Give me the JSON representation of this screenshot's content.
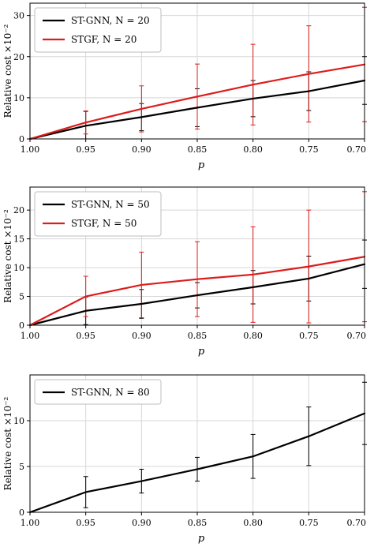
{
  "chart_data": [
    {
      "type": "line",
      "x": [
        1.0,
        0.95,
        0.9,
        0.85,
        0.8,
        0.75,
        0.7
      ],
      "tick_labels": [
        "1.00",
        "0.95",
        "0.90",
        "0.85",
        "0.80",
        "0.75",
        "0.70"
      ],
      "xlabel": "p",
      "ylabel": "Relative cost ×10⁻²",
      "ylim": [
        0,
        33
      ],
      "yticks": [
        0,
        10,
        20,
        30
      ],
      "grid": true,
      "legend_position": "top-left",
      "series": [
        {
          "name": "ST-GNN, N = 20",
          "color": "#000000",
          "values": [
            0,
            3.2,
            5.3,
            7.6,
            9.8,
            11.6,
            14.2
          ],
          "errors": [
            0,
            3.5,
            3.3,
            4.6,
            4.4,
            4.7,
            5.8
          ]
        },
        {
          "name": "STGF, N = 20",
          "color": "#dd1c1c",
          "values": [
            0,
            4.0,
            7.3,
            10.3,
            13.2,
            15.8,
            18.1
          ],
          "errors": [
            0,
            2.8,
            5.6,
            7.9,
            9.8,
            11.7,
            13.9
          ]
        }
      ]
    },
    {
      "type": "line",
      "x": [
        1.0,
        0.95,
        0.9,
        0.85,
        0.8,
        0.75,
        0.7
      ],
      "tick_labels": [
        "1.00",
        "0.95",
        "0.90",
        "0.85",
        "0.80",
        "0.75",
        "0.70"
      ],
      "xlabel": "p",
      "ylabel": "Relative cost ×10⁻²",
      "ylim": [
        0,
        24
      ],
      "yticks": [
        0,
        5,
        10,
        15,
        20
      ],
      "grid": true,
      "legend_position": "top-left",
      "series": [
        {
          "name": "ST-GNN, N = 50",
          "color": "#000000",
          "values": [
            0,
            2.5,
            3.7,
            5.2,
            6.6,
            8.1,
            10.6
          ],
          "errors": [
            0,
            2.4,
            2.5,
            2.2,
            2.9,
            3.9,
            4.2
          ]
        },
        {
          "name": "STGF, N = 50",
          "color": "#dd1c1c",
          "values": [
            0,
            5.0,
            7.0,
            8.0,
            8.8,
            10.2,
            11.9
          ],
          "errors": [
            0,
            3.5,
            5.7,
            6.5,
            8.3,
            9.8,
            11.3
          ]
        }
      ]
    },
    {
      "type": "line",
      "x": [
        1.0,
        0.95,
        0.9,
        0.85,
        0.8,
        0.75,
        0.7
      ],
      "tick_labels": [
        "1.00",
        "0.95",
        "0.90",
        "0.85",
        "0.80",
        "0.75",
        "0.70"
      ],
      "xlabel": "p",
      "ylabel": "Relative cost ×10⁻²",
      "ylim": [
        0,
        15
      ],
      "yticks": [
        0,
        5,
        10
      ],
      "grid": true,
      "legend_position": "top-left",
      "series": [
        {
          "name": "ST-GNN, N = 80",
          "color": "#000000",
          "values": [
            0,
            2.2,
            3.4,
            4.7,
            6.1,
            8.3,
            10.8
          ],
          "errors": [
            0,
            1.7,
            1.3,
            1.3,
            2.4,
            3.2,
            3.4
          ]
        }
      ]
    }
  ]
}
